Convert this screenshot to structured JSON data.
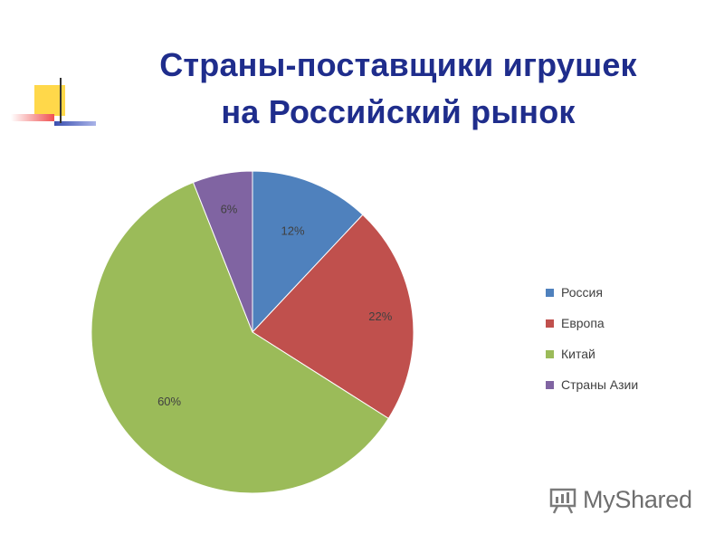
{
  "title": {
    "line1": "Страны-поставщики игрушек",
    "line2": "на Российский рынок"
  },
  "colors": {
    "title": "#1f2d8c",
    "decor_yellow": "#ffd84a",
    "decor_red": "#f05050",
    "decor_blue": "#3a4fb0"
  },
  "chart_data": {
    "type": "pie",
    "title": "",
    "categories": [
      "Россия",
      "Европа",
      "Китай",
      "Страны Азии"
    ],
    "values": [
      12,
      22,
      60,
      6
    ],
    "labels": [
      "12%",
      "22%",
      "60%",
      "6%"
    ],
    "colors": [
      "#4f81bd",
      "#c0504d",
      "#9bbb59",
      "#8064a2"
    ],
    "start_angle": "12 o'clock",
    "direction": "clockwise",
    "legend_position": "right"
  },
  "watermark": {
    "text": "MyShared",
    "icon": "presentation-board-icon"
  }
}
